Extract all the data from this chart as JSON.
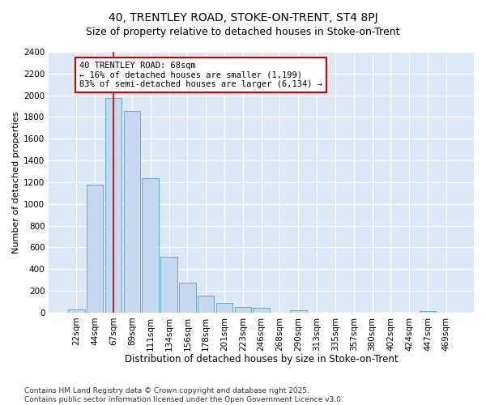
{
  "title1": "40, TRENTLEY ROAD, STOKE-ON-TRENT, ST4 8PJ",
  "title2": "Size of property relative to detached houses in Stoke-on-Trent",
  "xlabel": "Distribution of detached houses by size in Stoke-on-Trent",
  "ylabel": "Number of detached properties",
  "categories": [
    "22sqm",
    "44sqm",
    "67sqm",
    "89sqm",
    "111sqm",
    "134sqm",
    "156sqm",
    "178sqm",
    "201sqm",
    "223sqm",
    "246sqm",
    "268sqm",
    "290sqm",
    "313sqm",
    "335sqm",
    "357sqm",
    "380sqm",
    "402sqm",
    "424sqm",
    "447sqm",
    "469sqm"
  ],
  "values": [
    30,
    1175,
    1975,
    1855,
    1240,
    515,
    275,
    155,
    90,
    50,
    40,
    0,
    22,
    0,
    0,
    0,
    0,
    0,
    0,
    15,
    0
  ],
  "bar_color": "#c5d8f0",
  "bar_edge_color": "#6aabd2",
  "red_line_x": 2.0,
  "annotation_text": "40 TRENTLEY ROAD: 68sqm\n← 16% of detached houses are smaller (1,199)\n83% of semi-detached houses are larger (6,134) →",
  "annotation_box_color": "#ffffff",
  "annotation_box_edge": "#cc0000",
  "red_line_color": "#cc0000",
  "footer1": "Contains HM Land Registry data © Crown copyright and database right 2025.",
  "footer2": "Contains public sector information licensed under the Open Government Licence v3.0.",
  "fig_bg_color": "#ffffff",
  "plot_bg_color": "#dce8f5",
  "grid_color": "#ffffff",
  "ylim": [
    0,
    2400
  ],
  "yticks": [
    0,
    200,
    400,
    600,
    800,
    1000,
    1200,
    1400,
    1600,
    1800,
    2000,
    2200,
    2400
  ],
  "title1_fontsize": 10,
  "title2_fontsize": 9,
  "xlabel_fontsize": 8.5,
  "ylabel_fontsize": 8,
  "tick_fontsize": 7.5,
  "annotation_fontsize": 7.5,
  "footer_fontsize": 6.5
}
